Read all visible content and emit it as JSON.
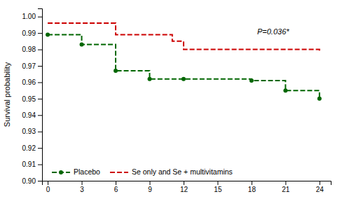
{
  "chart_data": {
    "type": "line",
    "ylabel": "Survival probability",
    "xlim": [
      -0.5,
      25.0
    ],
    "xticks": [
      0,
      3,
      6,
      9,
      12,
      15,
      18,
      21,
      24
    ],
    "ylim": [
      0.9,
      1.005
    ],
    "yticks": [
      {
        "value": 0.9,
        "label": "0.90"
      },
      0.91,
      0.92,
      0.93,
      0.94,
      0.95,
      0.96,
      0.97,
      0.98,
      0.99,
      {
        "value": 1.0,
        "label": "1.00"
      }
    ],
    "grid": false,
    "legend": "lower left",
    "series": [
      {
        "name": "Placebo",
        "color": "#006600",
        "line_style": "dashed",
        "marker": "circle",
        "x": [
          0,
          3,
          3,
          6,
          6,
          9,
          9,
          12,
          12,
          18,
          18,
          21,
          21,
          24,
          24
        ],
        "values": [
          0.989,
          0.989,
          0.983,
          0.983,
          0.967,
          0.967,
          0.962,
          0.962,
          0.962,
          0.962,
          0.961,
          0.961,
          0.955,
          0.955,
          0.95
        ],
        "marker_x": [
          0,
          3,
          6,
          9,
          12,
          18,
          21,
          24
        ],
        "marker_values": [
          0.989,
          0.983,
          0.967,
          0.962,
          0.962,
          0.961,
          0.955,
          0.95
        ]
      },
      {
        "name": "Se only and Se + multivitamins",
        "color": "#cc0000",
        "line_style": "dashed",
        "x": [
          0,
          6,
          6,
          11,
          11,
          12,
          12,
          24,
          24
        ],
        "values": [
          0.996,
          0.996,
          0.989,
          0.989,
          0.985,
          0.985,
          0.98,
          0.98,
          0.978
        ]
      }
    ],
    "annotations": [
      {
        "text": "P=0.036*",
        "x": 18.5,
        "y": 0.9905
      }
    ]
  }
}
